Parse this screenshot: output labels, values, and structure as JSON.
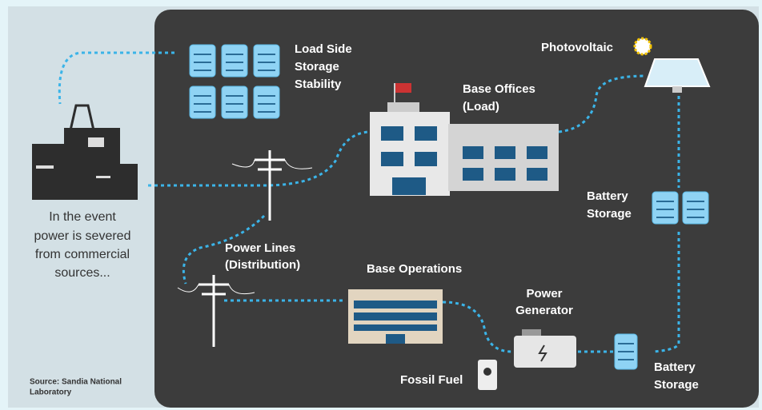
{
  "nodes": [
    {
      "label": [
        "Load Side",
        "Storage",
        "Stability"
      ]
    },
    {
      "label": [
        "Photovoltaic"
      ]
    },
    {
      "label": [
        "Base Offices",
        "(Load)"
      ]
    },
    {
      "label": [
        "Battery",
        "Storage"
      ]
    },
    {
      "label": [
        "Power Lines",
        "(Distribution)"
      ]
    },
    {
      "label": [
        "Base Operations"
      ]
    },
    {
      "label": [
        "Power",
        "Generator"
      ]
    },
    {
      "label": [
        "Fossil Fuel"
      ]
    },
    {
      "label": [
        "Battery",
        "Storage"
      ]
    }
  ],
  "caption": [
    "In the event",
    "power is severed",
    "from commercial",
    "sources..."
  ],
  "source": [
    "Source: Sandia National",
    "Laboratory"
  ]
}
